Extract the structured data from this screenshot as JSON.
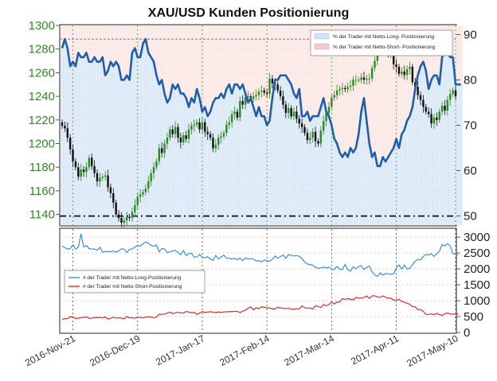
{
  "chart_data": [
    {
      "type": "candlestick+line",
      "title": "XAU/USD Kunden Positionierung",
      "x_labels": [
        "2016-Nov-21",
        "2016-Dec-19",
        "2017-Jan-17",
        "2017-Feb-14",
        "2017-Mar-14",
        "2017-Apr-11",
        "2017-May-10"
      ],
      "left_axis": {
        "ticks": [
          1140,
          1160,
          1180,
          1200,
          1220,
          1240,
          1260,
          1280,
          1300
        ],
        "ylim": [
          1131,
          1300
        ]
      },
      "right_axis": {
        "ticks": [
          50,
          60,
          70,
          80,
          90
        ],
        "ylim": [
          48,
          92
        ]
      },
      "reference_lines": [
        50,
        89
      ],
      "legend": {
        "placement": "top-right",
        "items": [
          {
            "label": "% der Trader mit Netto-Long- Positionierung",
            "color": "#cfe3f5"
          },
          {
            "label": "% der Trader mit Netto-Short- Positionierung",
            "color": "#f7caca"
          }
        ]
      },
      "price_close": [
        1215,
        1213,
        1205,
        1195,
        1185,
        1180,
        1172,
        1178,
        1176,
        1180,
        1188,
        1181,
        1175,
        1168,
        1171,
        1172,
        1173,
        1163,
        1158,
        1150,
        1140,
        1137,
        1133,
        1135,
        1138,
        1137,
        1142,
        1148,
        1155,
        1157,
        1159,
        1162,
        1168,
        1175,
        1180,
        1185,
        1196,
        1192,
        1200,
        1205,
        1212,
        1208,
        1214,
        1205,
        1201,
        1207,
        1204,
        1212,
        1215,
        1216,
        1218,
        1212,
        1218,
        1210,
        1208,
        1205,
        1196,
        1199,
        1205,
        1206,
        1209,
        1216,
        1218,
        1225,
        1227,
        1222,
        1236,
        1233,
        1239,
        1240,
        1238,
        1240,
        1241,
        1244,
        1245,
        1243,
        1242,
        1255,
        1251,
        1250,
        1245,
        1240,
        1233,
        1226,
        1230,
        1223,
        1227,
        1221,
        1217,
        1214,
        1209,
        1203,
        1205,
        1210,
        1202,
        1200,
        1211,
        1219,
        1226,
        1231,
        1239,
        1241,
        1245,
        1246,
        1247,
        1246,
        1248,
        1249,
        1254,
        1254,
        1254,
        1256,
        1254,
        1255,
        1255,
        1264,
        1270,
        1283,
        1288,
        1287,
        1284,
        1276,
        1279,
        1267,
        1265,
        1259,
        1261,
        1258,
        1263,
        1265,
        1252,
        1248,
        1241,
        1237,
        1231,
        1227,
        1225,
        1217,
        1222,
        1220,
        1227,
        1232,
        1228,
        1237,
        1242,
        1245,
        1240
      ],
      "pct_long": [
        87,
        89,
        87,
        83,
        84,
        83,
        86,
        85,
        85,
        86,
        84,
        84,
        85,
        84,
        84,
        85,
        81,
        82,
        84,
        83,
        84,
        83,
        80,
        80,
        81,
        80,
        86,
        87,
        85,
        85,
        88,
        89,
        86,
        85,
        84,
        81,
        79,
        80,
        77,
        75,
        76,
        79,
        78,
        79,
        77,
        77,
        76,
        74,
        76,
        75,
        78,
        76,
        73,
        74,
        72,
        73,
        75,
        76,
        76,
        77,
        76,
        78,
        79,
        77,
        79,
        79,
        78,
        79,
        77,
        75,
        76,
        74,
        72,
        74,
        72,
        72,
        70,
        71,
        76,
        80,
        80,
        81,
        81,
        81,
        80,
        79,
        77,
        76,
        78,
        72,
        72,
        73,
        71,
        72,
        72,
        72,
        74,
        76,
        73,
        72,
        70,
        67,
        66,
        64,
        63,
        64,
        63,
        65,
        64,
        65,
        68,
        73,
        76,
        71,
        66,
        63,
        64,
        61,
        61,
        63,
        62,
        63,
        64,
        65,
        67,
        65,
        68,
        69,
        71,
        72,
        74,
        78,
        81,
        83,
        84,
        82,
        78,
        80,
        81,
        81,
        79,
        85,
        86,
        86,
        85,
        85,
        79,
        79,
        79
      ],
      "long_count": [
        2713,
        2665,
        2620,
        2638,
        2756,
        2623,
        2682,
        3106,
        2688,
        2731,
        2637,
        2621,
        2626,
        2586,
        2680,
        2522,
        2550,
        2551,
        2535,
        2563,
        2529,
        2569,
        2625,
        2624,
        2513,
        2613,
        2624,
        2687,
        2738,
        2725,
        2790,
        2846,
        2802,
        2738,
        2714,
        2748,
        2536,
        2641,
        2626,
        2508,
        2537,
        2563,
        2580,
        2521,
        2445,
        2576,
        2419,
        2477,
        2491,
        2371,
        2374,
        2452,
        2367,
        2350,
        2380,
        2314,
        2268,
        2420,
        2308,
        2376,
        2428,
        2336,
        2333,
        2307,
        2330,
        2287,
        2339,
        2255,
        2346,
        2307,
        2320,
        2304,
        2250,
        2256,
        2220,
        2281,
        2250,
        2244,
        2298,
        2400,
        2337,
        2382,
        2434,
        2332,
        2450,
        2424,
        2406,
        2416,
        2392,
        2323,
        2215,
        2152,
        2137,
        2112,
        2051,
        2021,
        2030,
        2056,
        2031,
        2053,
        1986,
        1988,
        2074,
        1986,
        1985,
        2140,
        1970,
        1927,
        2066,
        2004,
        2073,
        2098,
        1978,
        2046,
        2087,
        1909,
        1810,
        1763,
        1874,
        1800,
        1855,
        1842,
        1834,
        1838,
        2021,
        2123,
        1993,
        2119,
        1996,
        2016,
        2132,
        2245,
        2295,
        2284,
        2385,
        2457,
        2436,
        2472,
        2395,
        2466,
        2558,
        2765,
        2723,
        2794,
        2717,
        2477,
        2465,
        2434
      ],
      "short_count": [
        412,
        435,
        439,
        494,
        487,
        438,
        450,
        462,
        475,
        491,
        447,
        448,
        469,
        465,
        473,
        456,
        488,
        422,
        449,
        476,
        452,
        461,
        452,
        428,
        504,
        461,
        459,
        449,
        476,
        473,
        455,
        479,
        493,
        483,
        462,
        483,
        574,
        569,
        576,
        610,
        641,
        595,
        618,
        636,
        613,
        612,
        658,
        645,
        616,
        636,
        576,
        607,
        656,
        632,
        642,
        653,
        639,
        626,
        647,
        627,
        648,
        649,
        657,
        656,
        662,
        664,
        626,
        675,
        697,
        762,
        803,
        715,
        776,
        747,
        802,
        797,
        771,
        771,
        741,
        740,
        794,
        772,
        761,
        749,
        770,
        727,
        734,
        748,
        740,
        836,
        777,
        767,
        768,
        738,
        841,
        817,
        787,
        878,
        840,
        877,
        963,
        893,
        962,
        954,
        1066,
        1042,
        1062,
        1047,
        1024,
        1102,
        1081,
        1080,
        1099,
        1148,
        1070,
        1152,
        1153,
        1119,
        1102,
        1152,
        1107,
        1078,
        1079,
        1019,
        1019,
        1047,
        972,
        953,
        920,
        885,
        811,
        809,
        712,
        723,
        665,
        573,
        564,
        586,
        558,
        600,
        564,
        535,
        590,
        614,
        583,
        572,
        580,
        588
      ],
      "lower_axis": {
        "ticks": [
          0,
          500,
          1000,
          1500,
          2000,
          2500,
          3000
        ],
        "ylim": [
          0,
          3250
        ]
      },
      "lower_legend": [
        {
          "label": "# der Trader mit Netto-Long-Positionierung",
          "color": "#3b8fe0"
        },
        {
          "label": "# der Trader mit Netto-Short-Positionierung",
          "color": "#e02a2a"
        }
      ]
    }
  ]
}
